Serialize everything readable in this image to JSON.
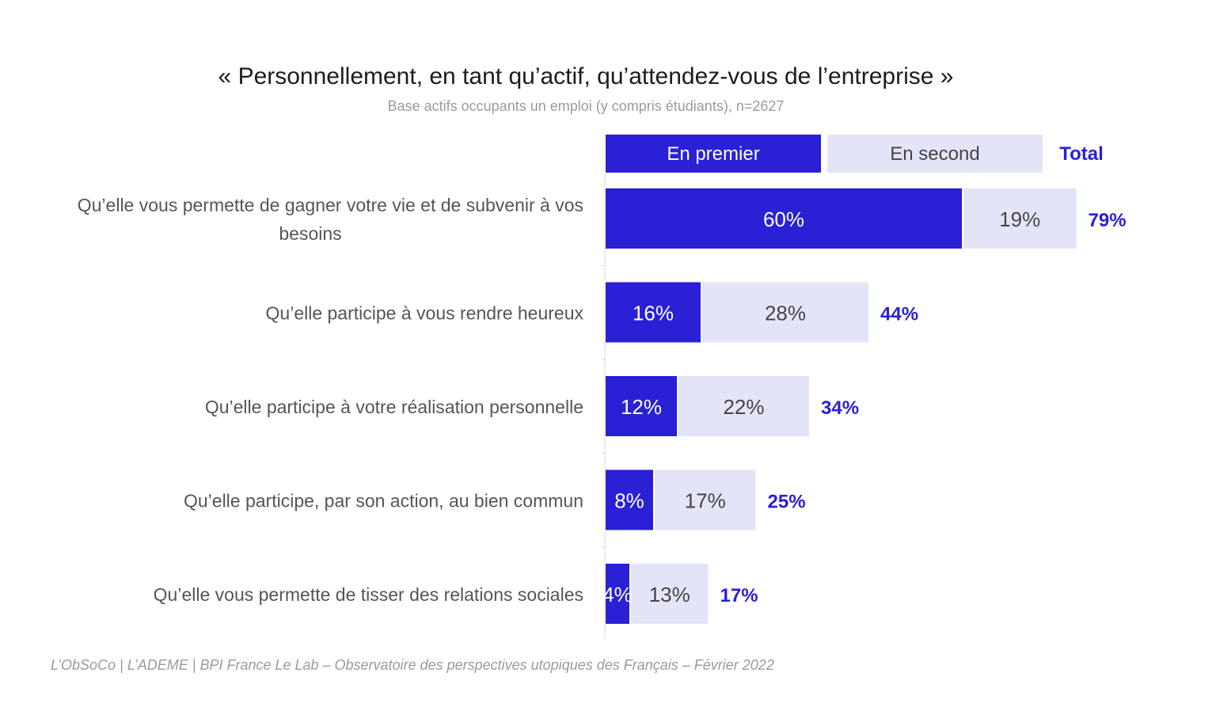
{
  "title": "« Personnellement, en tant qu’actif, qu’attendez-vous de l’entreprise »",
  "subtitle": "Base actifs occupants un emploi (y compris étudiants), n=2627",
  "source": "L’ObSoCo | L’ADEME | BPI France Le Lab – Observatoire des perspectives utopiques des Français – Février 2022",
  "colors": {
    "first": "#2a20d6",
    "second": "#e4e4f8",
    "total": "#2a20d6",
    "label": "#555555"
  },
  "chart_data": {
    "type": "bar",
    "orientation": "horizontal",
    "stacked": true,
    "unit": "%",
    "categories": [
      [
        "Qu’elle vous permette de gagner votre vie et de subvenir à vos",
        "besoins"
      ],
      [
        "Qu’elle participe à vous rendre heureux"
      ],
      [
        "Qu’elle participe à votre réalisation personnelle"
      ],
      [
        "Qu’elle participe, par son action, au bien commun"
      ],
      [
        "Qu’elle vous permette de tisser des relations sociales"
      ]
    ],
    "series": [
      {
        "name": "En premier",
        "values": [
          60,
          16,
          12,
          8,
          4
        ]
      },
      {
        "name": "En second",
        "values": [
          19,
          28,
          22,
          17,
          13
        ]
      }
    ],
    "total_label": "Total",
    "totals": [
      79,
      44,
      34,
      25,
      17
    ],
    "legend_position": "top"
  }
}
